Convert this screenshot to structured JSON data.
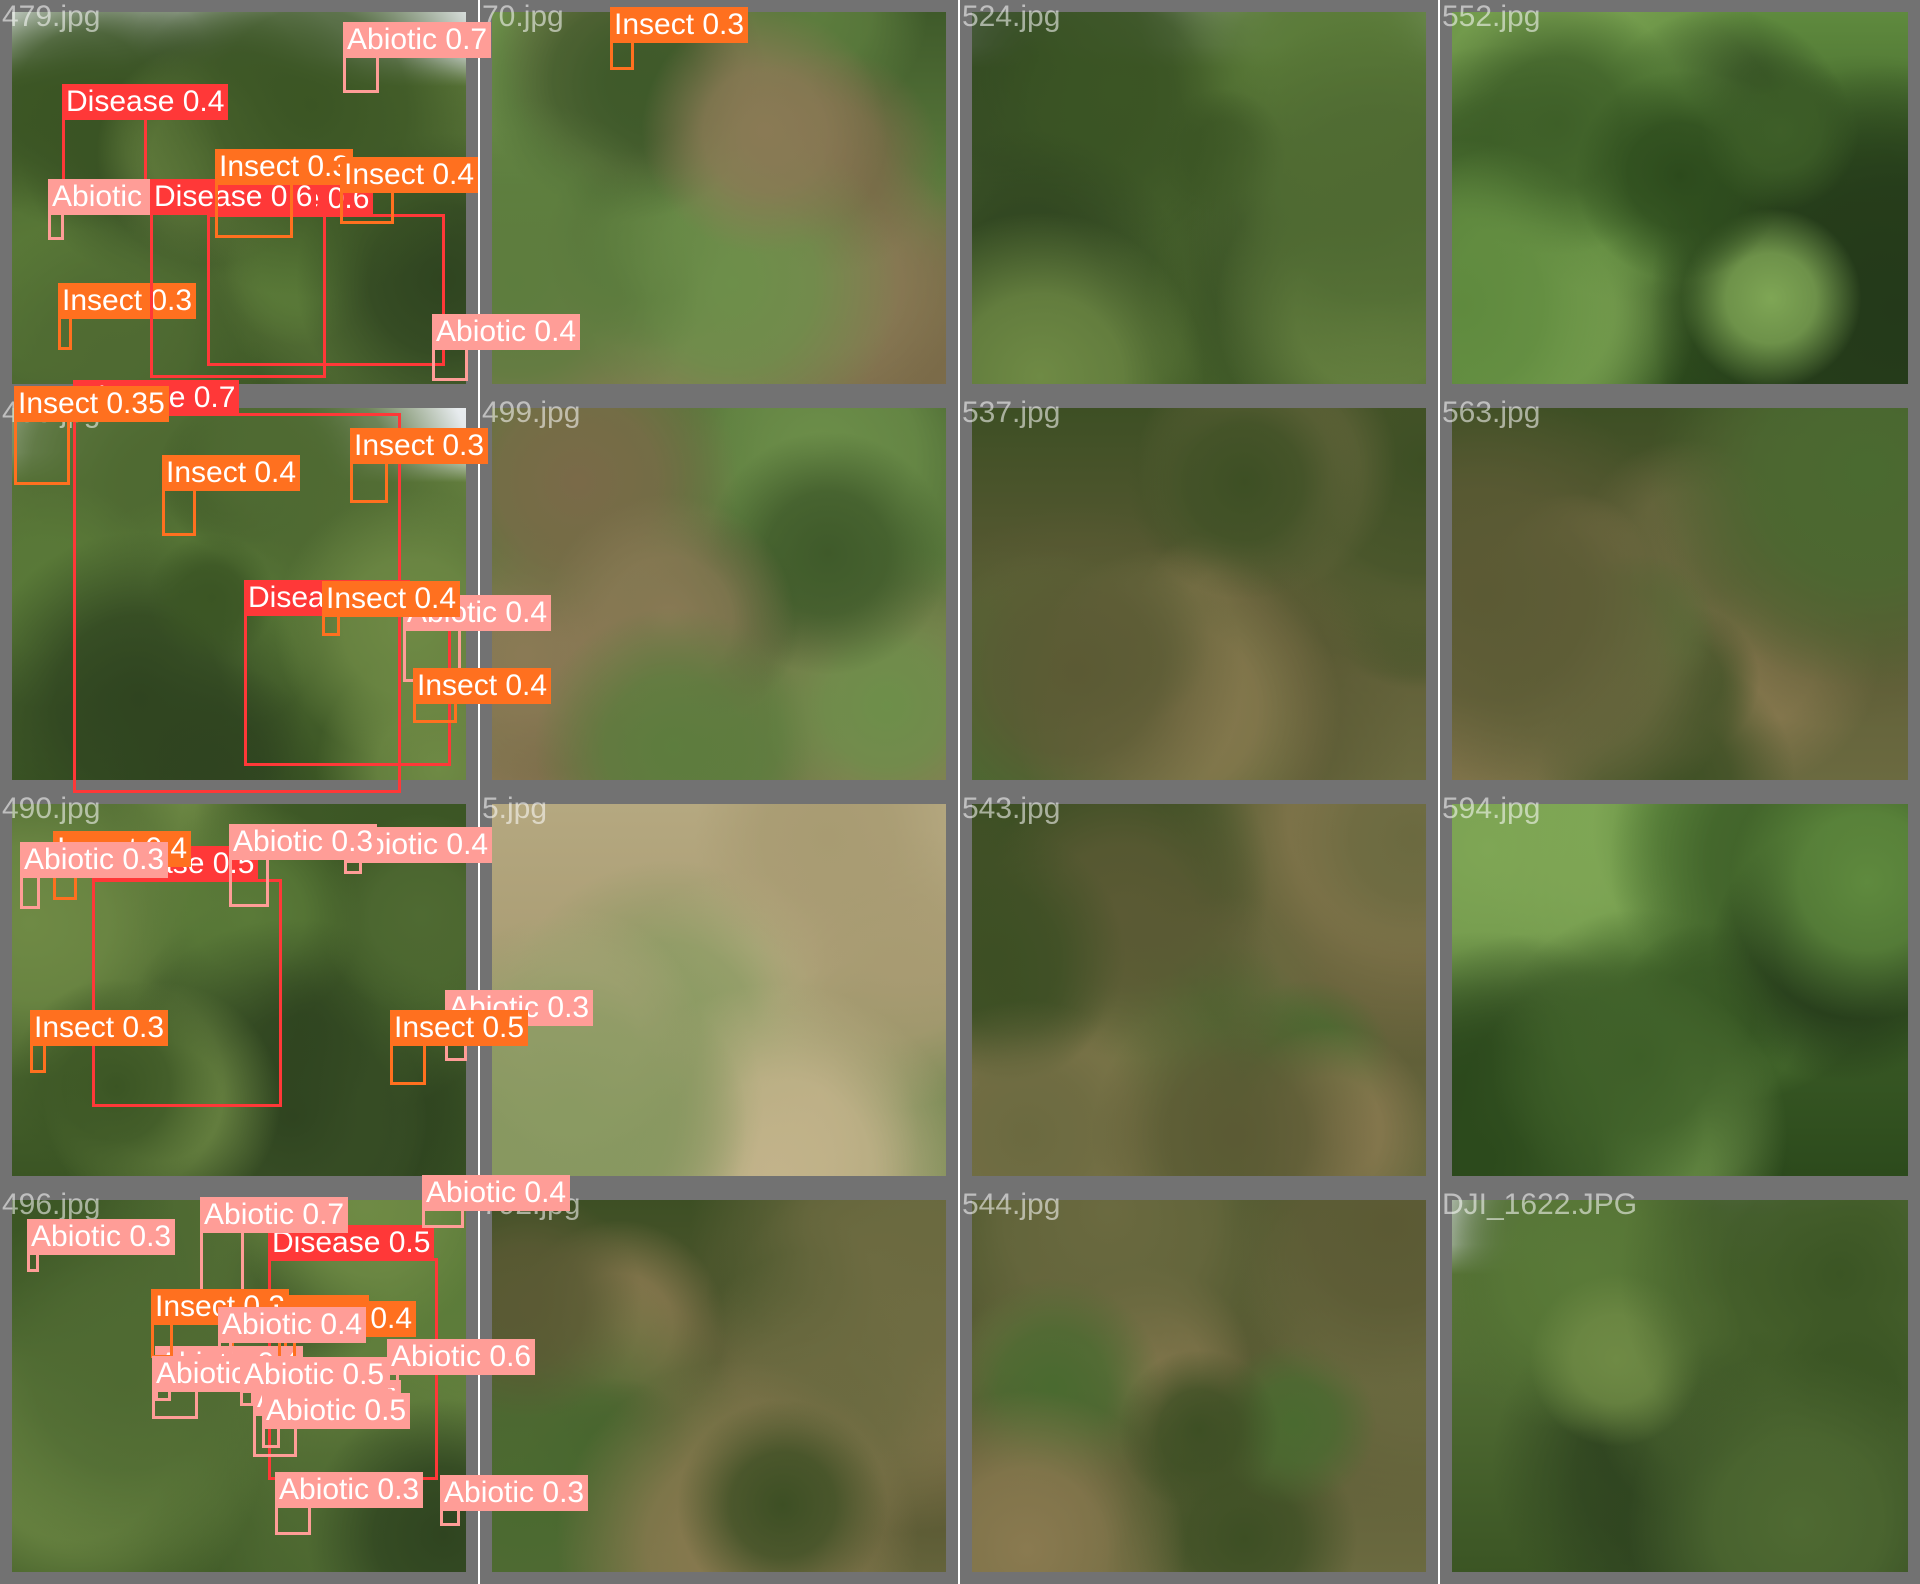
{
  "colors": {
    "Disease": "#ff3838",
    "Insect": "#ff701f",
    "Abiotic": "#ff9d97",
    "tile_border": "#727272"
  },
  "tiles": [
    {
      "filename": "479.jpg",
      "sky": 0.2,
      "tone": "bush",
      "detections": [
        {
          "label": "Disease 0.6",
          "cls": "Disease"
        },
        {
          "label": "Insect 0.3",
          "cls": "Insect"
        }
      ]
    },
    {
      "filename": "70.jpg",
      "sky": 0,
      "tone": "closeup",
      "detections": [
        {
          "label": "Abiotic 0.7",
          "cls": "Abiotic"
        },
        {
          "label": "Disease 0.4",
          "cls": "Disease"
        },
        {
          "label": "Abiotic 0.4",
          "cls": "Abiotic"
        }
      ]
    },
    {
      "filename": "524.jpg",
      "sky": 0.15,
      "tone": "bush",
      "detections": [
        {
          "label": "Abiotic 0.3",
          "cls": "Abiotic"
        },
        {
          "label": "Disease 0.6",
          "cls": "Disease"
        }
      ]
    },
    {
      "filename": "552.jpg",
      "sky": 0,
      "tone": "canopy",
      "detections": [
        {
          "label": "Insect 0.3",
          "cls": "Insect"
        },
        {
          "label": "Insect 0.3",
          "cls": "Insect"
        },
        {
          "label": "Insect 0.4",
          "cls": "Insect"
        }
      ]
    },
    {
      "filename": "483.jpg",
      "sky": 0.2,
      "tone": "bush",
      "detections": [
        {
          "label": "Disease 0.5",
          "cls": "Disease"
        }
      ]
    },
    {
      "filename": "499.jpg",
      "sky": 0,
      "tone": "closeup",
      "detections": [
        {
          "label": "Disease 0.7",
          "cls": "Disease"
        }
      ]
    },
    {
      "filename": "537.jpg",
      "sky": 0,
      "tone": "orchard",
      "detections": [
        {
          "label": "Abiotic 0.4",
          "cls": "Abiotic"
        }
      ]
    },
    {
      "filename": "563.jpg",
      "sky": 0,
      "tone": "orchard",
      "detections": [
        {
          "label": "Insect 0.35",
          "cls": "Insect"
        },
        {
          "label": "Insect 0.4",
          "cls": "Insect"
        },
        {
          "label": "Insect 0.3",
          "cls": "Insect"
        },
        {
          "label": "Insect 0.4",
          "cls": "Insect"
        },
        {
          "label": "Insect 0.4",
          "cls": "Insect"
        }
      ]
    },
    {
      "filename": "490.jpg",
      "sky": 0,
      "tone": "bush",
      "detections": [
        {
          "label": "Disease 0.5",
          "cls": "Disease"
        }
      ]
    },
    {
      "filename": "5.jpg",
      "sky": 0,
      "tone": "pale",
      "detections": [
        {
          "label": "Insect 0.3",
          "cls": "Insect"
        },
        {
          "label": "Abiotic 0.3",
          "cls": "Abiotic"
        }
      ]
    },
    {
      "filename": "543.jpg",
      "sky": 0,
      "tone": "orchard",
      "detections": [
        {
          "label": "Insect 0.4",
          "cls": "Insect"
        },
        {
          "label": "Abiotic 0.4",
          "cls": "Abiotic"
        }
      ]
    },
    {
      "filename": "594.jpg",
      "sky": 0,
      "tone": "canopy",
      "detections": [
        {
          "label": "Abiotic 0.3",
          "cls": "Abiotic"
        },
        {
          "label": "Abiotic 0.3",
          "cls": "Abiotic"
        },
        {
          "label": "Insect 0.5",
          "cls": "Insect"
        },
        {
          "label": "Abiotic 0.4",
          "cls": "Abiotic"
        }
      ]
    },
    {
      "filename": "496.jpg",
      "sky": 0,
      "tone": "bush",
      "detections": [
        {
          "label": "Disease 0.5",
          "cls": "Disease"
        }
      ]
    },
    {
      "filename": "792.jpg",
      "sky": 0,
      "tone": "orchard",
      "detections": [
        {
          "label": "Abiotic 0.7",
          "cls": "Abiotic"
        },
        {
          "label": "Abiotic 0.4",
          "cls": "Abiotic"
        },
        {
          "label": "Insect 0.3",
          "cls": "Insect"
        },
        {
          "label": "Abiotic 0.4",
          "cls": "Abiotic"
        },
        {
          "label": "Abiotic 0.6",
          "cls": "Abiotic"
        },
        {
          "label": "Abiotic 0.3",
          "cls": "Abiotic"
        },
        {
          "label": "Abiotic 0.3",
          "cls": "Abiotic"
        }
      ]
    },
    {
      "filename": "544.jpg",
      "sky": 0,
      "tone": "orchard",
      "detections": [
        {
          "label": "Insect 0.3",
          "cls": "Insect"
        },
        {
          "label": "Insect 0.4",
          "cls": "Insect"
        }
      ]
    },
    {
      "filename": "DJI_1622.JPG",
      "sky": 0.2,
      "tone": "bush",
      "detections": [
        {
          "label": "Abiotic 0.3",
          "cls": "Abiotic"
        },
        {
          "label": "Abiotic 0.4",
          "cls": "Abiotic"
        },
        {
          "label": "Abiotic 0.6",
          "cls": "Abiotic"
        },
        {
          "label": "Abiotic 0.3",
          "cls": "Abiotic"
        },
        {
          "label": "Abiotic 0.5",
          "cls": "Abiotic"
        },
        {
          "label": "Abiotic 0.5",
          "cls": "Abiotic"
        }
      ]
    }
  ]
}
